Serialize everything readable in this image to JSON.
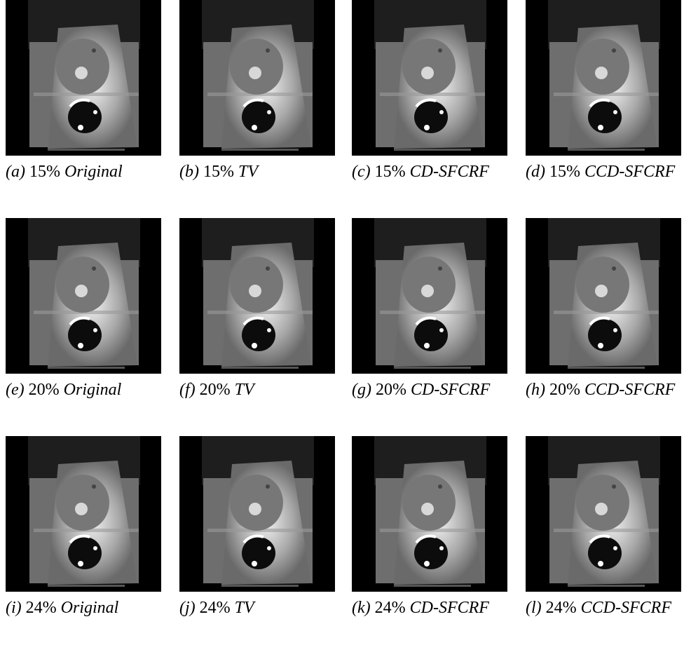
{
  "figure": {
    "panels": [
      {
        "label": "(a)",
        "percent": "15%",
        "method": "Original"
      },
      {
        "label": "(b)",
        "percent": "15%",
        "method": "TV"
      },
      {
        "label": "(c)",
        "percent": "15%",
        "method": "CD-SFCRF"
      },
      {
        "label": "(d)",
        "percent": "15%",
        "method": "CCD-SFCRF"
      },
      {
        "label": "(e)",
        "percent": "20%",
        "method": "Original"
      },
      {
        "label": "(f)",
        "percent": "20%",
        "method": "TV"
      },
      {
        "label": "(g)",
        "percent": "20%",
        "method": "CD-SFCRF"
      },
      {
        "label": "(h)",
        "percent": "20%",
        "method": "CCD-SFCRF"
      },
      {
        "label": "(i)",
        "percent": "24%",
        "method": "Original"
      },
      {
        "label": "(j)",
        "percent": "24%",
        "method": "TV"
      },
      {
        "label": "(k)",
        "percent": "24%",
        "method": "CD-SFCRF"
      },
      {
        "label": "(l)",
        "percent": "24%",
        "method": "CCD-SFCRF"
      }
    ]
  }
}
